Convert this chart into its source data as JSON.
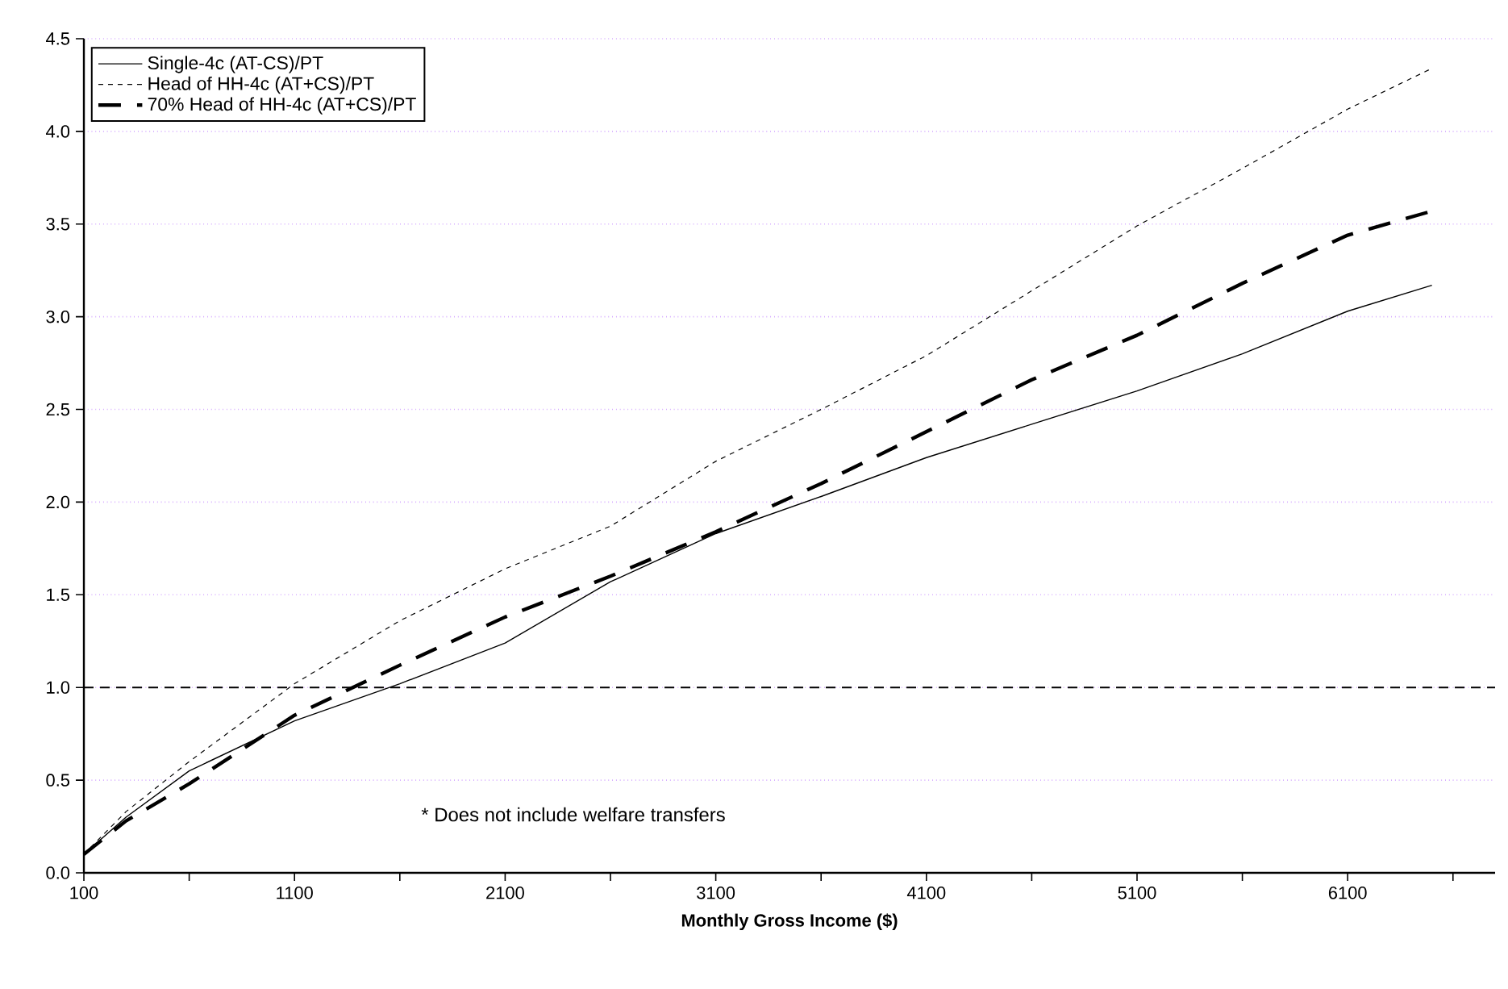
{
  "chart_data": {
    "type": "line",
    "xlabel": "Monthly Gross Income ($)",
    "x": [
      100,
      300,
      600,
      1100,
      1600,
      2100,
      2600,
      3100,
      3600,
      4100,
      4600,
      5100,
      5600,
      6100,
      6500
    ],
    "series": [
      {
        "name": "Single-4c (AT-CS)/PT",
        "color": "#000000",
        "line_style": "solid",
        "values": [
          0.1,
          0.3,
          0.55,
          0.82,
          1.02,
          1.24,
          1.57,
          1.83,
          2.03,
          2.24,
          2.42,
          2.6,
          2.8,
          3.03,
          3.17
        ]
      },
      {
        "name": "Head of HH-4c (AT+CS)/PT",
        "color": "#000000",
        "line_style": "dashed",
        "values": [
          0.1,
          0.33,
          0.6,
          1.02,
          1.36,
          1.64,
          1.87,
          2.22,
          2.5,
          2.79,
          3.14,
          3.49,
          3.8,
          4.12,
          4.34
        ]
      },
      {
        "name": "70% Head of HH-4c (AT+CS)/PT",
        "color": "#000000",
        "line_style": "dashed",
        "values": [
          0.1,
          0.28,
          0.48,
          0.85,
          1.12,
          1.38,
          1.6,
          1.84,
          2.1,
          2.38,
          2.66,
          2.9,
          3.18,
          3.44,
          3.57
        ]
      }
    ],
    "xlim": [
      100,
      6800
    ],
    "xticks": [
      100,
      {
        "value": 600,
        "label": null
      },
      1100,
      {
        "value": 1600,
        "label": null
      },
      2100,
      {
        "value": 2600,
        "label": null
      },
      3100,
      {
        "value": 3600,
        "label": null
      },
      4100,
      {
        "value": 4600,
        "label": null
      },
      5100,
      {
        "value": 5600,
        "label": null
      },
      6100,
      {
        "value": 6600,
        "label": null
      }
    ],
    "ylim": [
      0,
      4.5
    ],
    "yticks": [
      {
        "value": 0,
        "label": "0.0"
      },
      0.5,
      {
        "value": 1,
        "label": "1.0"
      },
      1.5,
      {
        "value": 2,
        "label": "2.0"
      },
      2.5,
      {
        "value": 3,
        "label": "3.0"
      },
      3.5,
      {
        "value": 4,
        "label": "4.0"
      },
      4.5
    ],
    "grid": "y",
    "legend": "top left",
    "marker": "none",
    "ref_lines": [
      {
        "axis": "y",
        "value": 1,
        "color": "#000000",
        "line_style": "dashed"
      }
    ],
    "annotations": [
      "* Does not include welfare transfers"
    ]
  }
}
